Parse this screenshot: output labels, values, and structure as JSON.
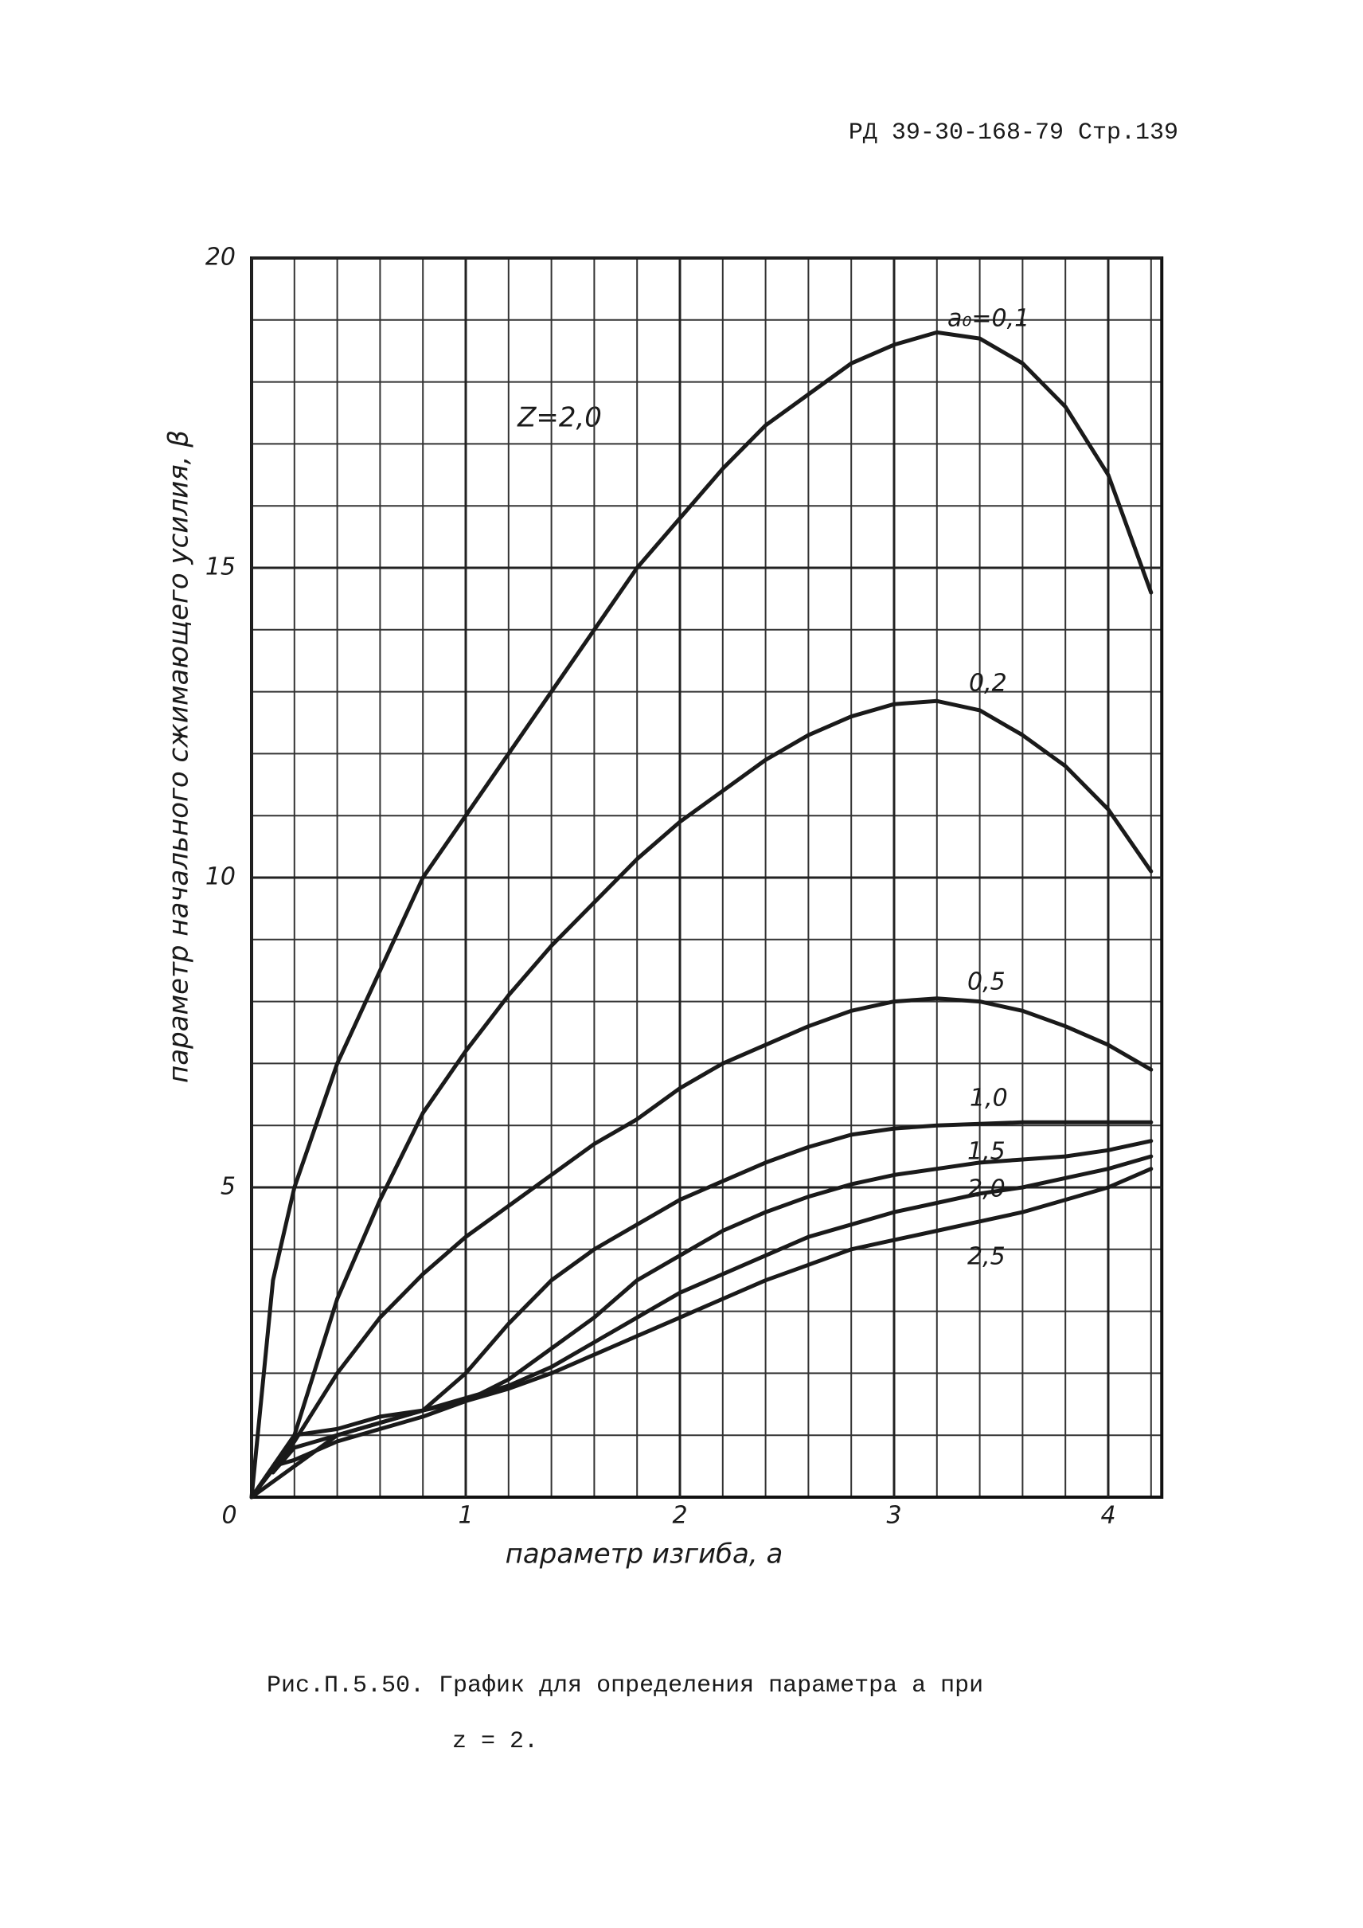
{
  "header": "РД 39-30-168-79 Стр.139",
  "caption": [
    "Рис.П.5.50. График для определения параметра a при",
    "z = 2."
  ],
  "chart_data": {
    "type": "line",
    "x_label": "параметр изгиба, a",
    "y_label": "параметр начального сжимающего усилия, β",
    "annotation": "Z=2,0",
    "xlim": [
      0,
      4.25
    ],
    "ylim": [
      0,
      20
    ],
    "xticks": [
      0,
      1,
      2,
      3,
      4
    ],
    "yticks": [
      5,
      10,
      15,
      20
    ],
    "grid": {
      "x_step": 0.2,
      "y_step": 1
    },
    "color": "#1a1a1a",
    "series": [
      {
        "name": "a₀=0,1",
        "x": [
          0,
          0.1,
          0.2,
          0.4,
          0.6,
          0.8,
          1,
          1.2,
          1.4,
          1.6,
          1.8,
          2,
          2.2,
          2.4,
          2.6,
          2.8,
          3,
          3.2,
          3.4,
          3.6,
          3.8,
          4,
          4.2
        ],
        "values": [
          0,
          3.5,
          5,
          7,
          8.5,
          10,
          11,
          12,
          13,
          14,
          15,
          15.8,
          16.6,
          17.3,
          17.8,
          18.3,
          18.6,
          18.8,
          18.7,
          18.3,
          17.6,
          16.5,
          14.6
        ]
      },
      {
        "name": "0,2",
        "x": [
          0,
          0.2,
          0.4,
          0.6,
          0.8,
          1,
          1.2,
          1.4,
          1.6,
          1.8,
          2,
          2.2,
          2.4,
          2.6,
          2.8,
          3,
          3.2,
          3.4,
          3.6,
          3.8,
          4,
          4.2
        ],
        "values": [
          0,
          1,
          3.2,
          4.8,
          6.2,
          7.2,
          8.1,
          8.9,
          9.6,
          10.3,
          10.9,
          11.4,
          11.9,
          12.3,
          12.6,
          12.8,
          12.85,
          12.7,
          12.3,
          11.8,
          11.1,
          10.1
        ]
      },
      {
        "name": "0,5",
        "x": [
          0,
          0.2,
          0.4,
          0.6,
          0.8,
          1,
          1.2,
          1.4,
          1.6,
          1.8,
          2,
          2.2,
          2.4,
          2.6,
          2.8,
          3,
          3.2,
          3.4,
          3.6,
          3.8,
          4,
          4.2
        ],
        "values": [
          0,
          0.9,
          2,
          2.9,
          3.6,
          4.2,
          4.7,
          5.2,
          5.7,
          6.1,
          6.6,
          7,
          7.3,
          7.6,
          7.85,
          8,
          8.05,
          8,
          7.85,
          7.6,
          7.3,
          6.9
        ]
      },
      {
        "name": "1,0",
        "x": [
          0,
          0.2,
          0.4,
          0.6,
          0.8,
          1,
          1.2,
          1.4,
          1.6,
          1.8,
          2,
          2.2,
          2.4,
          2.6,
          2.8,
          3,
          3.2,
          3.6,
          4.2
        ],
        "values": [
          0,
          0.5,
          1,
          1.2,
          1.4,
          2,
          2.8,
          3.5,
          4,
          4.4,
          4.8,
          5.1,
          5.4,
          5.65,
          5.85,
          5.95,
          6,
          6.05,
          6.05
        ]
      },
      {
        "name": "1,5",
        "x": [
          0.1,
          0.2,
          0.4,
          0.6,
          0.8,
          1,
          1.2,
          1.4,
          1.6,
          1.8,
          2,
          2.2,
          2.4,
          2.6,
          2.8,
          3,
          3.2,
          3.4,
          3.6,
          3.8,
          4,
          4.2
        ],
        "values": [
          0.4,
          1,
          1.1,
          1.3,
          1.4,
          1.55,
          1.9,
          2.4,
          2.9,
          3.5,
          3.9,
          4.3,
          4.6,
          4.85,
          5.05,
          5.2,
          5.3,
          5.4,
          5.45,
          5.5,
          5.6,
          5.75
        ]
      },
      {
        "name": "2,0",
        "x": [
          0.1,
          0.2,
          0.4,
          0.6,
          0.8,
          1,
          1.2,
          1.4,
          1.6,
          1.8,
          2,
          2.2,
          2.4,
          2.6,
          2.8,
          3,
          3.2,
          3.4,
          3.6,
          3.8,
          4,
          4.2
        ],
        "values": [
          0.4,
          0.8,
          1,
          1.2,
          1.4,
          1.6,
          1.8,
          2.1,
          2.5,
          2.9,
          3.3,
          3.6,
          3.9,
          4.2,
          4.4,
          4.6,
          4.75,
          4.9,
          5,
          5.15,
          5.3,
          5.5
        ]
      },
      {
        "name": "2,5",
        "x": [
          0.1,
          0.2,
          0.4,
          0.6,
          0.8,
          1,
          1.2,
          1.4,
          1.6,
          1.8,
          2,
          2.2,
          2.4,
          2.6,
          2.8,
          3,
          3.2,
          3.4,
          3.6,
          3.8,
          4,
          4.2
        ],
        "values": [
          0.5,
          0.6,
          0.9,
          1.1,
          1.3,
          1.55,
          1.75,
          2,
          2.3,
          2.6,
          2.9,
          3.2,
          3.5,
          3.75,
          4,
          4.15,
          4.3,
          4.45,
          4.6,
          4.8,
          5,
          5.3
        ]
      }
    ]
  }
}
